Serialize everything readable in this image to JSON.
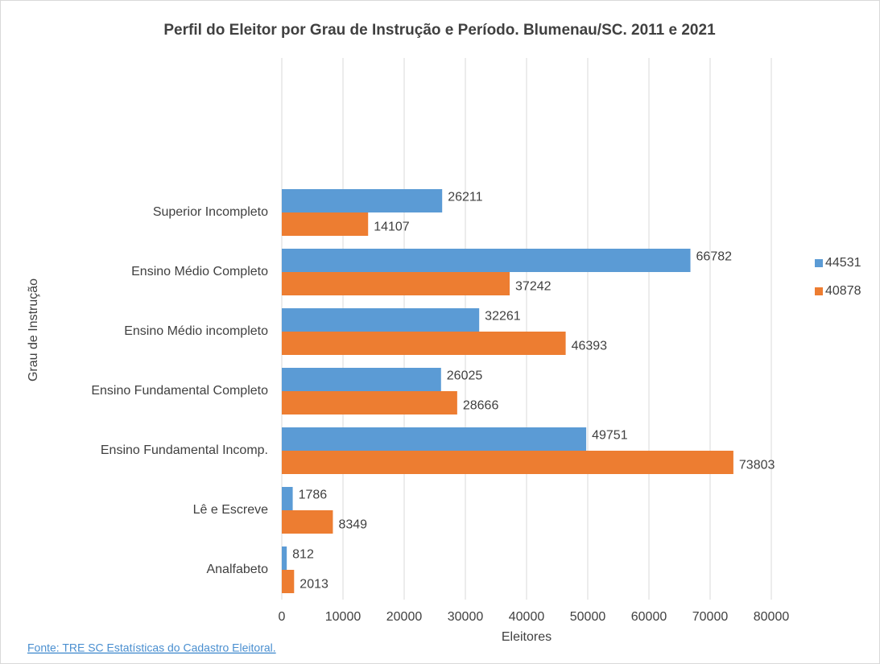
{
  "chart_data": {
    "type": "bar",
    "orientation": "horizontal",
    "title": "Perfil do Eleitor por Grau de Instrução e Período. Blumenau/SC. 2011 e 2021",
    "x_label": "Eleitores",
    "y_label": "Grau de Instrução",
    "footnote": "Fonte: TRE SC Estatísticas do Cadastro Eleitoral.",
    "categories": [
      null,
      null,
      "Superior Incompleto",
      "Ensino Médio Completo",
      "Ensino Médio incompleto",
      "Ensino Fundamental Completo",
      "Ensino Fundamental Incomp.",
      "Lê e Escreve",
      "Analfabeto"
    ],
    "series": [
      {
        "name": "44531",
        "color": "#5b9bd5",
        "values": [
          null,
          null,
          26211,
          66782,
          32261,
          26025,
          49751,
          1786,
          812
        ]
      },
      {
        "name": "40878",
        "color": "#ed7d31",
        "values": [
          null,
          null,
          14107,
          37242,
          46393,
          28666,
          73803,
          8349,
          2013
        ]
      }
    ],
    "xlim": [
      0,
      80000
    ],
    "xticks": [
      0,
      10000,
      20000,
      30000,
      40000,
      50000,
      60000,
      70000,
      80000
    ],
    "grid": true,
    "legend": "right"
  }
}
